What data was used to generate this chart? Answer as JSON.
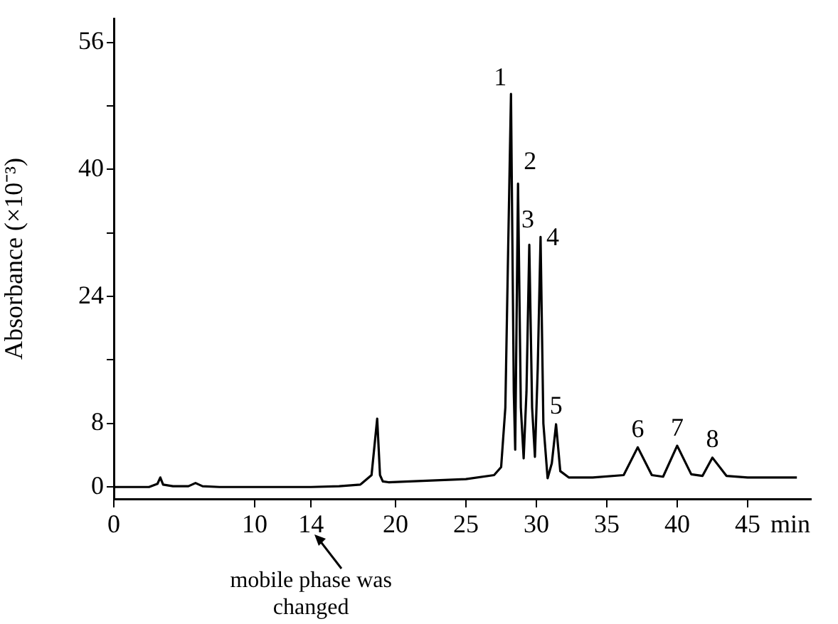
{
  "chart_data": {
    "type": "line",
    "ylabel": "Absorbance (×10⁻³)",
    "xlabel": "min",
    "x": [
      0,
      2.5,
      3.1,
      3.3,
      3.5,
      4.2,
      5.3,
      5.8,
      6.3,
      7.5,
      10,
      14,
      16,
      17.5,
      18.3,
      18.7,
      18.9,
      19.1,
      19.5,
      21,
      25,
      27,
      27.5,
      27.8,
      28.0,
      28.2,
      28.4,
      28.5,
      28.7,
      28.9,
      29.1,
      29.3,
      29.5,
      29.7,
      29.9,
      30.1,
      30.3,
      30.5,
      30.8,
      31.1,
      31.4,
      31.7,
      32.3,
      34,
      36.2,
      37.2,
      38.2,
      39,
      40.0,
      41,
      41.8,
      42.5,
      43.5,
      45,
      48.5
    ],
    "series": [
      {
        "color": "#000000",
        "values": [
          0,
          0,
          0.4,
          1.2,
          0.3,
          0.1,
          0.1,
          0.5,
          0.1,
          0,
          0,
          0,
          0.1,
          0.3,
          1.5,
          8.6,
          1.5,
          0.7,
          0.6,
          0.7,
          1.0,
          1.5,
          2.5,
          10,
          30,
          49.5,
          12,
          4.7,
          38.2,
          10,
          3.6,
          12,
          30.5,
          10,
          3.8,
          15,
          31.5,
          8,
          1.1,
          3,
          7.9,
          2,
          1.2,
          1.2,
          1.5,
          5,
          1.5,
          1.3,
          5.2,
          1.6,
          1.4,
          3.7,
          1.4,
          1.2,
          1.2
        ]
      }
    ],
    "xlim": [
      0,
      49.5
    ],
    "xticks": [
      0,
      10,
      14,
      20,
      25,
      30,
      35,
      40,
      45
    ],
    "ylim": [
      -1.5,
      59
    ],
    "yticks": [
      0,
      8,
      {
        "value": 16,
        "label": null
      },
      24,
      {
        "value": 32,
        "label": null
      },
      40,
      {
        "value": 48,
        "label": null
      },
      56
    ],
    "grid": false,
    "legend": false,
    "marker": "none",
    "line_style": "solid",
    "annotations": [
      {
        "text": "1",
        "x": 28.2,
        "y": 49.5
      },
      {
        "text": "2",
        "x": 28.7,
        "y": 38.2
      },
      {
        "text": "3",
        "x": 29.5,
        "y": 30.5
      },
      {
        "text": "4",
        "x": 30.3,
        "y": 31.5
      },
      {
        "text": "5",
        "x": 31.4,
        "y": 7.9
      },
      {
        "text": "6",
        "x": 37.2,
        "y": 5
      },
      {
        "text": "7",
        "x": 40.0,
        "y": 5.2
      },
      {
        "text": "8",
        "x": 42.5,
        "y": 3.7
      },
      "mobile phase was changed"
    ]
  }
}
